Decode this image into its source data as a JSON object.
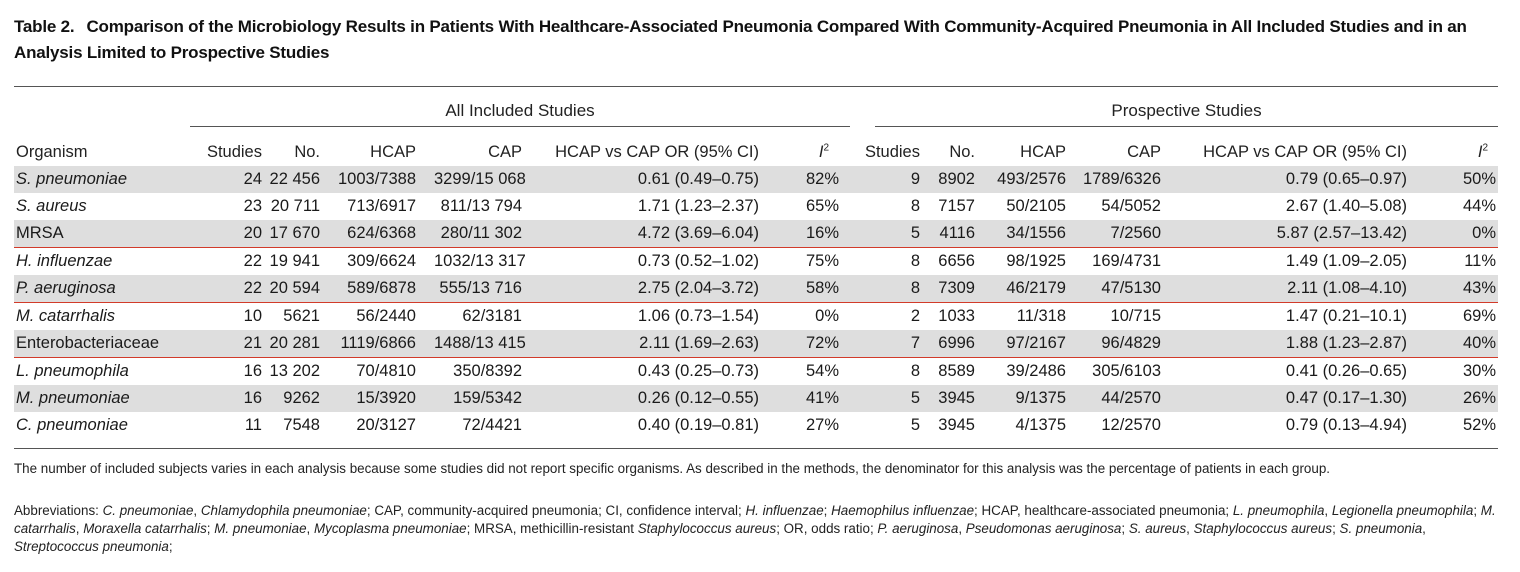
{
  "title": {
    "number": "Table 2.",
    "text": "Comparison of the Microbiology Results in Patients With Healthcare-Associated Pneumonia Compared With Community-Acquired Pneumonia in All Included Studies and in an Analysis Limited to Prospective Studies"
  },
  "groups": {
    "all": "All Included Studies",
    "prospective": "Prospective Studies"
  },
  "headers": {
    "organism": "Organism",
    "studies": "Studies",
    "no": "No.",
    "hcap": "HCAP",
    "cap": "CAP",
    "or": "HCAP vs CAP OR (95% CI)",
    "i2_letter": "I",
    "i2_power": "2"
  },
  "rows": [
    {
      "organism": "S. pneumoniae",
      "italic": true,
      "shaded": true,
      "redline": false,
      "all": [
        "24",
        "22 456",
        "1003/7388",
        "3299/15 068",
        "0.61 (0.49–0.75)",
        "82%"
      ],
      "pro": [
        "9",
        "8902",
        "493/2576",
        "1789/6326",
        "0.79 (0.65–0.97)",
        "50%"
      ]
    },
    {
      "organism": "S. aureus",
      "italic": true,
      "shaded": false,
      "redline": false,
      "all": [
        "23",
        "20 711",
        "713/6917",
        "811/13 794",
        "1.71 (1.23–2.37)",
        "65%"
      ],
      "pro": [
        "8",
        "7157",
        "50/2105",
        "54/5052",
        "2.67 (1.40–5.08)",
        "44%"
      ]
    },
    {
      "organism": "MRSA",
      "italic": false,
      "shaded": true,
      "redline": true,
      "all": [
        "20",
        "17 670",
        "624/6368",
        "280/11 302",
        "4.72 (3.69–6.04)",
        "16%"
      ],
      "pro": [
        "5",
        "4116",
        "34/1556",
        "7/2560",
        "5.87 (2.57–13.42)",
        "0%"
      ]
    },
    {
      "organism": "H. influenzae",
      "italic": true,
      "shaded": false,
      "redline": false,
      "all": [
        "22",
        "19 941",
        "309/6624",
        "1032/13 317",
        "0.73 (0.52–1.02)",
        "75%"
      ],
      "pro": [
        "8",
        "6656",
        "98/1925",
        "169/4731",
        "1.49 (1.09–2.05)",
        "11%"
      ]
    },
    {
      "organism": "P. aeruginosa",
      "italic": true,
      "shaded": true,
      "redline": true,
      "all": [
        "22",
        "20 594",
        "589/6878",
        "555/13 716",
        "2.75 (2.04–3.72)",
        "58%"
      ],
      "pro": [
        "8",
        "7309",
        "46/2179",
        "47/5130",
        "2.11 (1.08–4.10)",
        "43%"
      ]
    },
    {
      "organism": "M. catarrhalis",
      "italic": true,
      "shaded": false,
      "redline": false,
      "all": [
        "10",
        "5621",
        "56/2440",
        "62/3181",
        "1.06 (0.73–1.54)",
        "0%"
      ],
      "pro": [
        "2",
        "1033",
        "11/318",
        "10/715",
        "1.47 (0.21–10.1)",
        "69%"
      ]
    },
    {
      "organism": "Enterobacteriaceae",
      "italic": false,
      "shaded": true,
      "redline": true,
      "all": [
        "21",
        "20 281",
        "1119/6866",
        "1488/13 415",
        "2.11 (1.69–2.63)",
        "72%"
      ],
      "pro": [
        "7",
        "6996",
        "97/2167",
        "96/4829",
        "1.88 (1.23–2.87)",
        "40%"
      ]
    },
    {
      "organism": "L. pneumophila",
      "italic": true,
      "shaded": false,
      "redline": false,
      "all": [
        "16",
        "13 202",
        "70/4810",
        "350/8392",
        "0.43 (0.25–0.73)",
        "54%"
      ],
      "pro": [
        "8",
        "8589",
        "39/2486",
        "305/6103",
        "0.41 (0.26–0.65)",
        "30%"
      ]
    },
    {
      "organism": "M. pneumoniae",
      "italic": true,
      "shaded": true,
      "redline": false,
      "all": [
        "16",
        "9262",
        "15/3920",
        "159/5342",
        "0.26 (0.12–0.55)",
        "41%"
      ],
      "pro": [
        "5",
        "3945",
        "9/1375",
        "44/2570",
        "0.47 (0.17–1.30)",
        "26%"
      ]
    },
    {
      "organism": "C. pneumoniae",
      "italic": true,
      "shaded": false,
      "redline": false,
      "all": [
        "11",
        "7548",
        "20/3127",
        "72/4421",
        "0.40 (0.19–0.81)",
        "27%"
      ],
      "pro": [
        "5",
        "3945",
        "4/1375",
        "12/2570",
        "0.79 (0.13–4.94)",
        "52%"
      ]
    }
  ],
  "footnote1": "The number of included subjects varies in each analysis because some studies did not report specific organisms. As described in the methods, the denominator for this analysis was the percentage of patients in each group.",
  "abbreviations": [
    {
      "text": "Abbreviations: ",
      "italic": false
    },
    {
      "text": "C. pneumoniae",
      "italic": true
    },
    {
      "text": ", ",
      "italic": false
    },
    {
      "text": "Chlamydophila pneumoniae",
      "italic": true
    },
    {
      "text": "; CAP, community-acquired pneumonia; CI, confidence interval; ",
      "italic": false
    },
    {
      "text": "H. influenzae",
      "italic": true
    },
    {
      "text": "; ",
      "italic": false
    },
    {
      "text": "Haemophilus influenzae",
      "italic": true
    },
    {
      "text": "; HCAP, healthcare-associated pneumonia; ",
      "italic": false
    },
    {
      "text": "L. pneumophila",
      "italic": true
    },
    {
      "text": ", ",
      "italic": false
    },
    {
      "text": "Legionella pneumophila",
      "italic": true
    },
    {
      "text": "; ",
      "italic": false
    },
    {
      "text": "M. catarrhalis",
      "italic": true
    },
    {
      "text": ", ",
      "italic": false
    },
    {
      "text": "Moraxella catarrhalis",
      "italic": true
    },
    {
      "text": "; ",
      "italic": false
    },
    {
      "text": "M. pneumoniae",
      "italic": true
    },
    {
      "text": ", ",
      "italic": false
    },
    {
      "text": "Mycoplasma pneumoniae",
      "italic": true
    },
    {
      "text": "; MRSA, methicillin-resistant ",
      "italic": false
    },
    {
      "text": "Staphylococcus aureus",
      "italic": true
    },
    {
      "text": "; OR, odds ratio; ",
      "italic": false
    },
    {
      "text": "P. aeruginosa",
      "italic": true
    },
    {
      "text": ", ",
      "italic": false
    },
    {
      "text": "Pseudomonas aeruginosa",
      "italic": true
    },
    {
      "text": "; ",
      "italic": false
    },
    {
      "text": "S. aureus",
      "italic": true
    },
    {
      "text": ", ",
      "italic": false
    },
    {
      "text": "Staphylococcus aureus",
      "italic": true
    },
    {
      "text": "; ",
      "italic": false
    },
    {
      "text": "S. pneumonia",
      "italic": true
    },
    {
      "text": ", ",
      "italic": false
    },
    {
      "text": "Streptococcus pneumonia",
      "italic": true
    },
    {
      "text": ";",
      "italic": false
    }
  ],
  "colors": {
    "shade": "#dedede",
    "redline": "#d23b2a",
    "rule": "#555555"
  }
}
